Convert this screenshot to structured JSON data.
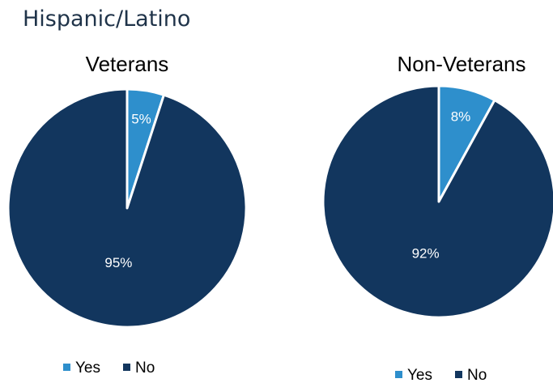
{
  "page_title": "Hispanic/Latino",
  "chart_data": [
    {
      "type": "pie",
      "title": "Veterans",
      "slices": [
        {
          "name": "Yes",
          "value": 5,
          "label": "5%",
          "color": "#2e8fcc"
        },
        {
          "name": "No",
          "value": 95,
          "label": "95%",
          "color": "#12365e"
        }
      ],
      "legend": {
        "placement": "bottom",
        "entries": [
          "Yes",
          "No"
        ]
      }
    },
    {
      "type": "pie",
      "title": "Non-Veterans",
      "slices": [
        {
          "name": "Yes",
          "value": 8,
          "label": "8%",
          "color": "#2e8fcc"
        },
        {
          "name": "No",
          "value": 92,
          "label": "92%",
          "color": "#12365e"
        }
      ],
      "legend": {
        "placement": "bottom",
        "entries": [
          "Yes",
          "No"
        ]
      }
    }
  ]
}
